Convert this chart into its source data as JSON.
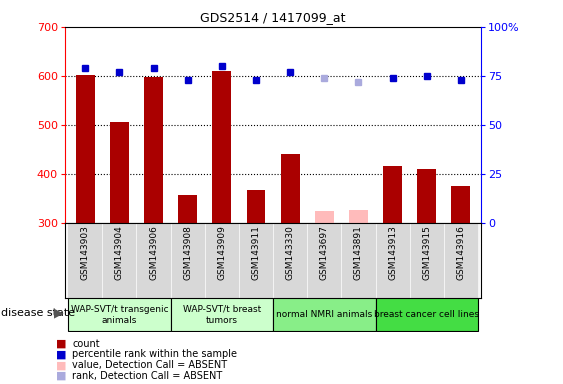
{
  "title": "GDS2514 / 1417099_at",
  "samples": [
    "GSM143903",
    "GSM143904",
    "GSM143906",
    "GSM143908",
    "GSM143909",
    "GSM143911",
    "GSM143330",
    "GSM143697",
    "GSM143891",
    "GSM143913",
    "GSM143915",
    "GSM143916"
  ],
  "count_values": [
    601,
    505,
    597,
    356,
    610,
    366,
    441,
    null,
    null,
    415,
    410,
    376
  ],
  "count_absent": [
    null,
    null,
    null,
    null,
    null,
    null,
    null,
    323,
    325,
    null,
    null,
    null
  ],
  "rank_values": [
    79,
    77,
    79,
    73,
    80,
    73,
    77,
    null,
    null,
    74,
    75,
    73
  ],
  "rank_absent": [
    null,
    null,
    null,
    null,
    null,
    null,
    null,
    74,
    72,
    null,
    null,
    null
  ],
  "ylim_left": [
    300,
    700
  ],
  "ylim_right": [
    0,
    100
  ],
  "yticks_left": [
    300,
    400,
    500,
    600,
    700
  ],
  "yticks_right": [
    0,
    25,
    50,
    75,
    100
  ],
  "group_borders": [
    [
      0,
      3,
      "WAP-SVT/t transgenic\nanimals",
      "#ccffcc"
    ],
    [
      3,
      6,
      "WAP-SVT/t breast\ntumors",
      "#ccffcc"
    ],
    [
      6,
      9,
      "normal NMRI animals",
      "#88ee88"
    ],
    [
      9,
      12,
      "breast cancer cell lines",
      "#44dd44"
    ]
  ],
  "bar_color_present": "#aa0000",
  "bar_color_absent": "#ffbbbb",
  "rank_color_present": "#0000cc",
  "rank_color_absent": "#aaaadd",
  "group_label": "disease state",
  "legend_items": [
    {
      "label": "count",
      "color": "#aa0000"
    },
    {
      "label": "percentile rank within the sample",
      "color": "#0000cc"
    },
    {
      "label": "value, Detection Call = ABSENT",
      "color": "#ffbbbb"
    },
    {
      "label": "rank, Detection Call = ABSENT",
      "color": "#aaaadd"
    }
  ]
}
